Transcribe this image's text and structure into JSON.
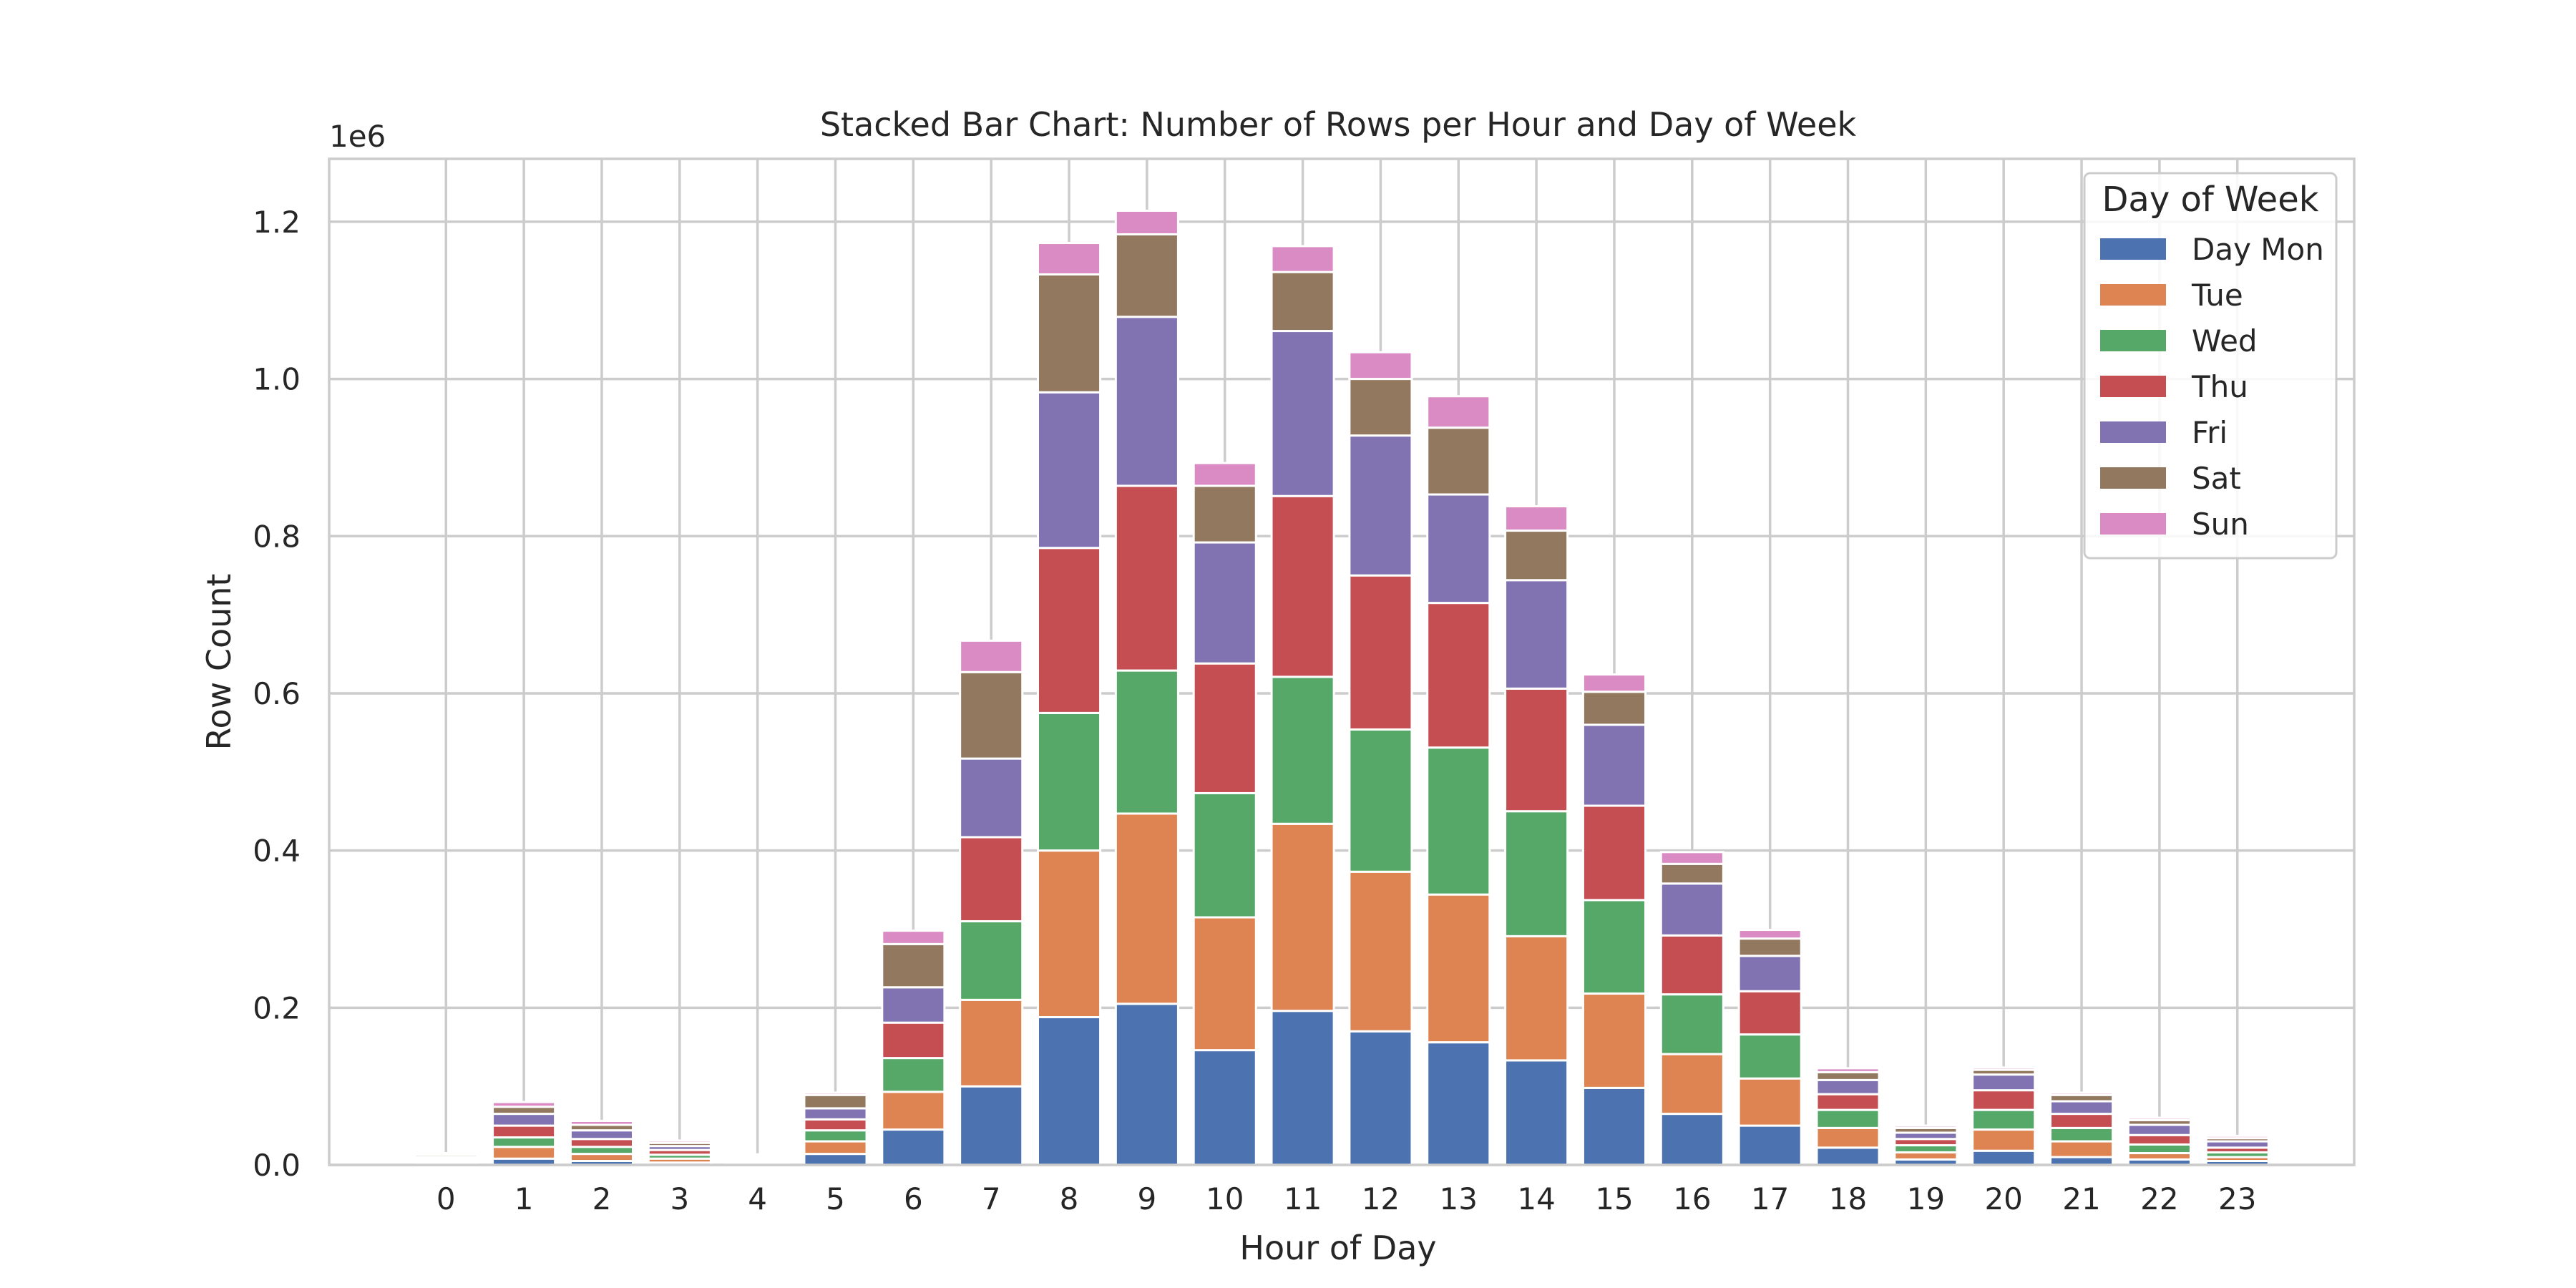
{
  "chart_data": {
    "type": "bar",
    "stacked": true,
    "title": "Stacked Bar Chart: Number of Rows per Hour and Day of Week",
    "xlabel": "Hour of Day",
    "ylabel": "Row Count",
    "y_offset_label": "1e6",
    "categories": [
      "0",
      "1",
      "2",
      "3",
      "4",
      "5",
      "6",
      "7",
      "8",
      "9",
      "10",
      "11",
      "12",
      "13",
      "14",
      "15",
      "16",
      "17",
      "18",
      "19",
      "20",
      "21",
      "22",
      "23"
    ],
    "yticks": [
      "0.0",
      "0.2",
      "0.4",
      "0.6",
      "0.8",
      "1.0",
      "1.2"
    ],
    "ytick_values": [
      0,
      200000,
      400000,
      600000,
      800000,
      1000000,
      1200000
    ],
    "ylim": [
      0,
      1280000
    ],
    "grid": true,
    "legend": {
      "title": "Day of Week",
      "position": "top-right"
    },
    "series": [
      {
        "name": "Day Mon",
        "color": "#4c72b0",
        "values": [
          2000,
          8000,
          5000,
          3000,
          1500,
          14000,
          45000,
          100000,
          188000,
          205000,
          146000,
          196000,
          170000,
          156000,
          133000,
          98000,
          65000,
          50000,
          22000,
          7000,
          18000,
          10000,
          7000,
          5000
        ]
      },
      {
        "name": "Tue",
        "color": "#dd8452",
        "values": [
          2000,
          15000,
          9000,
          5000,
          2000,
          16000,
          48000,
          110000,
          212000,
          242000,
          169000,
          238000,
          203000,
          188000,
          158000,
          120000,
          76000,
          60000,
          25000,
          9000,
          27000,
          20000,
          8000,
          5000
        ]
      },
      {
        "name": "Wed",
        "color": "#55a868",
        "values": [
          2000,
          12000,
          9000,
          5000,
          2000,
          14000,
          43000,
          100000,
          175000,
          182000,
          158000,
          187000,
          181000,
          187000,
          159000,
          119000,
          76000,
          56000,
          23000,
          9000,
          25000,
          17000,
          11000,
          6000
        ]
      },
      {
        "name": "Thu",
        "color": "#c44e52",
        "values": [
          2000,
          15000,
          10000,
          6000,
          2000,
          14000,
          45000,
          107000,
          210000,
          235000,
          165000,
          230000,
          196000,
          184000,
          156000,
          120000,
          75000,
          55000,
          20000,
          8000,
          25000,
          18000,
          12000,
          6000
        ]
      },
      {
        "name": "Fri",
        "color": "#8172b2",
        "values": [
          2000,
          15000,
          11000,
          5000,
          2000,
          14000,
          45000,
          100000,
          198000,
          215000,
          154000,
          210000,
          178000,
          138000,
          138000,
          103000,
          66000,
          45000,
          18000,
          8000,
          20000,
          16000,
          13000,
          8000
        ]
      },
      {
        "name": "Sat",
        "color": "#937860",
        "values": [
          3000,
          9000,
          7000,
          4000,
          2000,
          17000,
          55000,
          110000,
          150000,
          105000,
          72000,
          75000,
          72000,
          85000,
          63000,
          42000,
          25000,
          22000,
          10000,
          6000,
          6000,
          8000,
          6000,
          4000
        ]
      },
      {
        "name": "Sun",
        "color": "#da8bc3",
        "values": [
          2000,
          6000,
          5000,
          3000,
          2000,
          3000,
          17000,
          40000,
          40000,
          30000,
          29000,
          33000,
          34000,
          40000,
          31000,
          22000,
          15000,
          11000,
          5000,
          3000,
          3000,
          3000,
          3000,
          3000
        ]
      }
    ]
  }
}
